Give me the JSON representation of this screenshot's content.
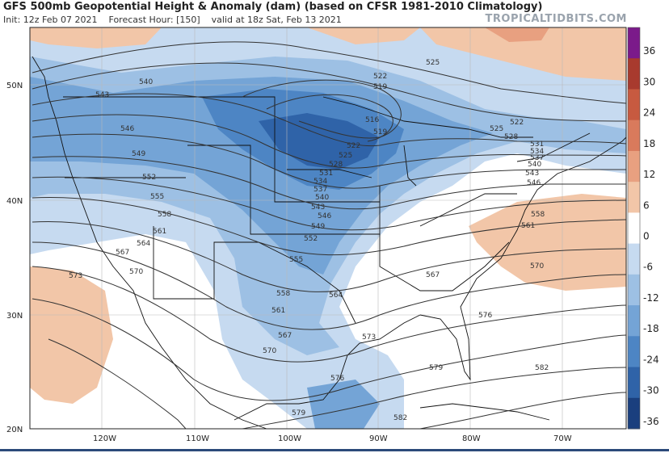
{
  "header": {
    "title": "GFS 500mb Geopotential Height & Anomaly (dam) (based on CFSR 1981-2010 Climatology)",
    "init": "Init: 12z Feb 07 2021",
    "forecast_hour": "Forecast Hour: [150]",
    "valid": "valid at 18z Sat, Feb 13 2021",
    "brand": "TROPICALTIDBITS.COM"
  },
  "axes": {
    "lat": [
      "50N",
      "40N",
      "30N",
      "20N"
    ],
    "lon": [
      "120W",
      "110W",
      "100W",
      "90W",
      "80W",
      "70W"
    ]
  },
  "colorbar": {
    "labels": [
      "36",
      "30",
      "24",
      "18",
      "12",
      "6",
      "0",
      "-6",
      "-12",
      "-18",
      "-24",
      "-30",
      "-36"
    ],
    "colors": [
      "#7b1a8a",
      "#a83a2e",
      "#c75a40",
      "#d97a5c",
      "#e8a080",
      "#f2c6a8",
      "#ffffff",
      "#c6daf0",
      "#9dc0e4",
      "#74a4d6",
      "#4d85c4",
      "#2f63a8",
      "#1a3f7e"
    ]
  },
  "contour_labels": [
    "525",
    "522",
    "519",
    "516",
    "519",
    "522",
    "525",
    "528",
    "531",
    "534",
    "537",
    "540",
    "543",
    "546",
    "549",
    "552",
    "555",
    "558",
    "561",
    "564",
    "567",
    "570",
    "573",
    "576",
    "579",
    "582",
    "540",
    "543",
    "546",
    "549",
    "552",
    "555",
    "558",
    "561",
    "564",
    "567",
    "570",
    "573",
    "522",
    "525",
    "528",
    "531",
    "534",
    "537",
    "540",
    "543",
    "546",
    "558",
    "561",
    "570",
    "576",
    "579",
    "582",
    "573",
    "576",
    "579",
    "582",
    "555",
    "558",
    "561",
    "564",
    "567"
  ]
}
